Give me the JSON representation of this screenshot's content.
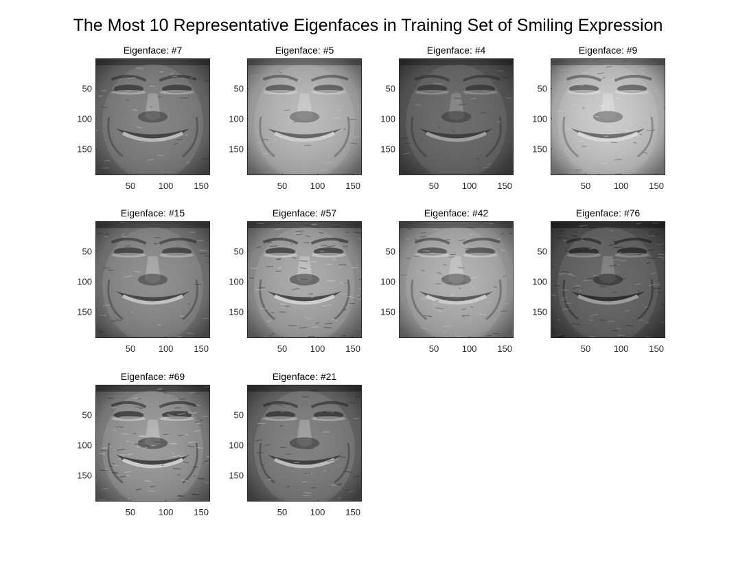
{
  "figure": {
    "title": "The Most 10 Representative Eigenfaces in Training Set of Smiling Expression"
  },
  "chart_data": {
    "type": "image-grid",
    "layout": {
      "rows": 3,
      "cols": 4
    },
    "colormap": "gray",
    "x_ticks": [
      50,
      100,
      150
    ],
    "y_ticks": [
      50,
      100,
      150
    ],
    "xlim": [
      0.5,
      162.5
    ],
    "ylim": [
      0.5,
      193.5
    ],
    "panels": [
      {
        "title": "Eigenface: #7",
        "eigenface": 7,
        "tone": "#727272",
        "feature": "#2f2f2f",
        "highlight": "#d8d8d8",
        "texture": 0.25
      },
      {
        "title": "Eigenface: #5",
        "eigenface": 5,
        "tone": "#b0b0b0",
        "feature": "#4a4a4a",
        "highlight": "#e8e8e8",
        "texture": 0.15
      },
      {
        "title": "Eigenface: #4",
        "eigenface": 4,
        "tone": "#5d5d5d",
        "feature": "#303030",
        "highlight": "#b8b8b8",
        "texture": 0.2
      },
      {
        "title": "Eigenface: #9",
        "eigenface": 9,
        "tone": "#c2c2c2",
        "feature": "#4e4e4e",
        "highlight": "#f3f3f3",
        "texture": 0.3
      },
      {
        "title": "Eigenface: #15",
        "eigenface": 15,
        "tone": "#7e7e7e",
        "feature": "#303030",
        "highlight": "#e0e0e0",
        "texture": 0.3
      },
      {
        "title": "Eigenface: #57",
        "eigenface": 57,
        "tone": "#9c9c9c",
        "feature": "#2a2a2a",
        "highlight": "#efefef",
        "texture": 0.75
      },
      {
        "title": "Eigenface: #42",
        "eigenface": 42,
        "tone": "#a6a6a6",
        "feature": "#3e3e3e",
        "highlight": "#e8e8e8",
        "texture": 0.55
      },
      {
        "title": "Eigenface: #76",
        "eigenface": 76,
        "tone": "#585858",
        "feature": "#1c1c1c",
        "highlight": "#b8b8b8",
        "texture": 0.85
      },
      {
        "title": "Eigenface: #69",
        "eigenface": 69,
        "tone": "#8a8a8a",
        "feature": "#262626",
        "highlight": "#ededed",
        "texture": 0.85
      },
      {
        "title": "Eigenface: #21",
        "eigenface": 21,
        "tone": "#6e6e6e",
        "feature": "#2a2a2a",
        "highlight": "#dcdcdc",
        "texture": 0.45
      }
    ]
  }
}
